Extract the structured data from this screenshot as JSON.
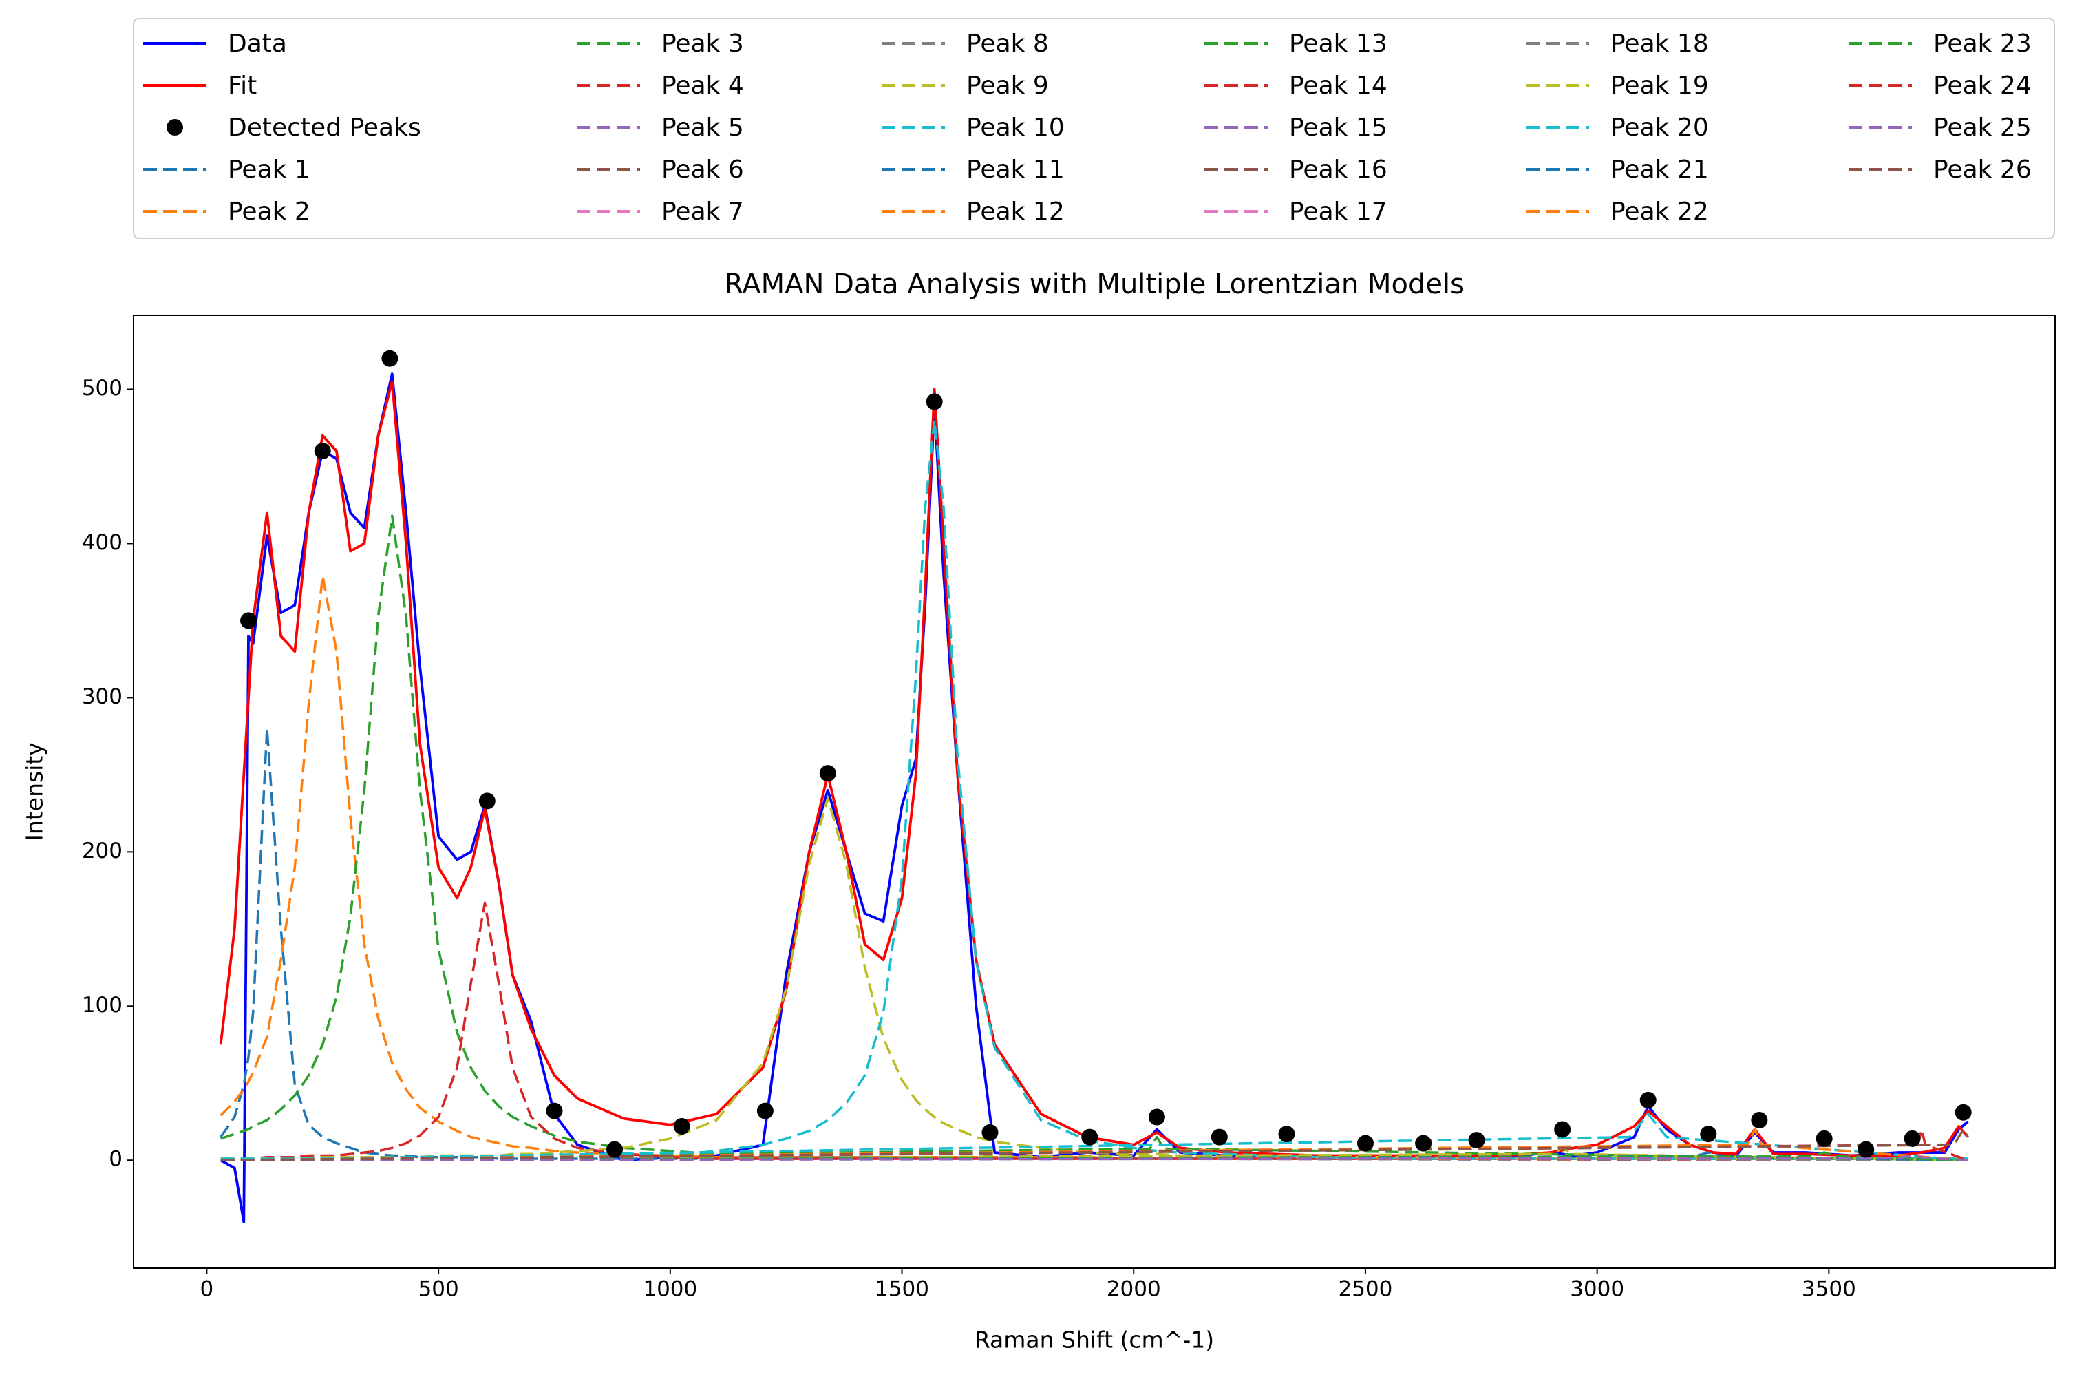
{
  "chart_data": {
    "type": "line",
    "title": "RAMAN Data Analysis with Multiple Lorentzian Models",
    "x_label": "Raman Shift (cm^-1)",
    "y_label": "Intensity",
    "xlim": [
      -158,
      3988
    ],
    "ylim": [
      -70,
      548
    ],
    "xticks": [
      0,
      500,
      1000,
      1500,
      2000,
      2500,
      3000,
      3500
    ],
    "yticks": [
      0,
      100,
      200,
      300,
      400,
      500
    ],
    "grid": false,
    "legend": "above",
    "x": [
      30,
      60,
      80,
      90,
      100,
      130,
      160,
      190,
      220,
      250,
      280,
      310,
      340,
      370,
      400,
      430,
      460,
      500,
      540,
      570,
      600,
      630,
      660,
      700,
      750,
      800,
      900,
      1000,
      1100,
      1200,
      1250,
      1300,
      1340,
      1380,
      1420,
      1460,
      1500,
      1530,
      1550,
      1570,
      1590,
      1620,
      1660,
      1700,
      1800,
      1900,
      2000,
      2050,
      2100,
      2200,
      2400,
      2600,
      2800,
      2900,
      2950,
      3000,
      3080,
      3110,
      3150,
      3200,
      3250,
      3300,
      3340,
      3380,
      3450,
      3550,
      3650,
      3700,
      3750,
      3780,
      3800
    ],
    "series": [
      {
        "name": "Data",
        "color": "#0000ff",
        "style": "solid",
        "values": [
          0,
          -5,
          -40,
          340,
          335,
          405,
          355,
          360,
          420,
          460,
          455,
          420,
          410,
          470,
          510,
          420,
          320,
          210,
          195,
          200,
          230,
          180,
          120,
          90,
          30,
          10,
          0,
          2,
          3,
          10,
          120,
          200,
          240,
          200,
          160,
          155,
          230,
          260,
          360,
          490,
          380,
          250,
          100,
          5,
          2,
          5,
          3,
          20,
          5,
          3,
          2,
          2,
          2,
          5,
          3,
          5,
          15,
          35,
          20,
          10,
          5,
          3,
          18,
          5,
          5,
          3,
          5,
          5,
          5,
          20,
          25
        ]
      },
      {
        "name": "Fit",
        "color": "#ff0000",
        "style": "solid",
        "values": [
          75,
          150,
          250,
          300,
          350,
          420,
          340,
          330,
          420,
          470,
          460,
          395,
          400,
          470,
          505,
          400,
          270,
          190,
          170,
          190,
          228,
          180,
          120,
          85,
          55,
          40,
          27,
          23,
          30,
          60,
          110,
          200,
          250,
          200,
          140,
          130,
          170,
          250,
          370,
          500,
          400,
          250,
          130,
          75,
          30,
          15,
          10,
          18,
          8,
          5,
          3,
          3,
          3,
          5,
          8,
          10,
          22,
          32,
          22,
          10,
          5,
          4,
          20,
          4,
          4,
          3,
          3,
          5,
          8,
          22,
          15
        ]
      },
      {
        "name": "Detected Peaks",
        "color": "#000000",
        "style": "marker",
        "x": [
          90,
          250,
          395,
          605,
          750,
          880,
          1025,
          1205,
          1340,
          1570,
          1690,
          1905,
          2050,
          2185,
          2330,
          2500,
          2625,
          2740,
          2925,
          3110,
          3240,
          3350,
          3490,
          3580,
          3680,
          3790
        ],
        "values": [
          350,
          460,
          520,
          233,
          32,
          7,
          22,
          32,
          251,
          492,
          18,
          15,
          28,
          15,
          17,
          11,
          11,
          13,
          20,
          39,
          17,
          26,
          14,
          7,
          14,
          31
        ]
      },
      {
        "name": "Peak 1",
        "color": "#1f77b4",
        "style": "dashed",
        "values": [
          15,
          28,
          49,
          67,
          96,
          280,
          150,
          49,
          23,
          15,
          11,
          8,
          5,
          4,
          3,
          3,
          2,
          2,
          2,
          2,
          2,
          1,
          1,
          1,
          1,
          1,
          1,
          1,
          1,
          1,
          1,
          1,
          1,
          1,
          1,
          1,
          1,
          1,
          1,
          1,
          1,
          1,
          1,
          1,
          1,
          1,
          1,
          1,
          1,
          1,
          1,
          1,
          1,
          1,
          1,
          1,
          1,
          1,
          1,
          1,
          1,
          1,
          1,
          1,
          1,
          1,
          1,
          1,
          1,
          1,
          1
        ]
      },
      {
        "name": "Peak 2",
        "color": "#ff7f0e",
        "style": "dashed",
        "values": [
          29,
          38,
          46,
          51,
          57,
          80,
          130,
          190,
          296,
          379,
          330,
          222,
          140,
          92,
          63,
          46,
          34,
          25,
          19,
          15,
          13,
          11,
          9,
          8,
          6,
          5,
          4,
          3,
          2,
          2,
          2,
          2,
          2,
          2,
          2,
          2,
          2,
          2,
          2,
          2,
          2,
          2,
          2,
          2,
          2,
          2,
          1,
          1,
          1,
          1,
          1,
          1,
          1,
          1,
          1,
          1,
          1,
          1,
          1,
          1,
          1,
          1,
          1,
          1,
          1,
          1,
          1,
          1,
          1,
          1,
          1
        ]
      },
      {
        "name": "Peak 3",
        "color": "#2ca02c",
        "style": "dashed",
        "values": [
          14,
          17,
          19,
          20,
          22,
          26,
          33,
          42,
          55,
          75,
          106,
          158,
          240,
          353,
          418,
          353,
          240,
          137,
          83,
          60,
          45,
          35,
          28,
          22,
          16,
          12,
          8,
          6,
          4,
          3,
          3,
          3,
          2,
          2,
          2,
          2,
          2,
          2,
          2,
          2,
          2,
          2,
          2,
          2,
          1,
          1,
          1,
          1,
          1,
          1,
          1,
          1,
          1,
          1,
          1,
          1,
          1,
          1,
          1,
          1,
          1,
          1,
          1,
          1,
          1,
          1,
          1,
          1,
          1,
          1,
          1
        ]
      },
      {
        "name": "Peak 4",
        "color": "#d62728",
        "style": "dashed",
        "values": [
          1,
          1,
          1,
          1,
          1,
          2,
          2,
          2,
          3,
          3,
          3,
          4,
          5,
          6,
          8,
          11,
          16,
          28,
          60,
          115,
          167,
          115,
          60,
          28,
          14,
          8,
          4,
          2,
          1,
          1,
          1,
          1,
          1,
          1,
          1,
          1,
          1,
          1,
          1,
          1,
          1,
          1,
          1,
          1,
          1,
          1,
          1,
          1,
          1,
          1,
          1,
          1,
          1,
          1,
          1,
          1,
          1,
          1,
          1,
          1,
          1,
          1,
          1,
          1,
          1,
          1,
          1,
          1,
          1,
          1,
          1
        ]
      },
      {
        "name": "Peak 5",
        "color": "#9467bd",
        "style": "dashed",
        "x": [
          30,
          720,
          750,
          780,
          3800
        ],
        "values": [
          0,
          2.5,
          5,
          2.5,
          0
        ]
      },
      {
        "name": "Peak 6",
        "color": "#8c564b",
        "style": "dashed",
        "x": [
          30,
          850,
          880,
          910,
          3800
        ],
        "values": [
          0,
          1.5,
          3,
          1.5,
          0
        ]
      },
      {
        "name": "Peak 7",
        "color": "#e377c2",
        "style": "dashed",
        "x": [
          30,
          995,
          1025,
          1055,
          3800
        ],
        "values": [
          0,
          1.5,
          3,
          1.5,
          0
        ]
      },
      {
        "name": "Peak 8",
        "color": "#7f7f7f",
        "style": "dashed",
        "x": [
          30,
          1175,
          1205,
          1235,
          3800
        ],
        "values": [
          0,
          1.5,
          3,
          1.5,
          0
        ]
      },
      {
        "name": "Peak 9",
        "color": "#bcbd22",
        "style": "dashed",
        "values": [
          1,
          1,
          1,
          1,
          1,
          1,
          1,
          1,
          1,
          2,
          2,
          2,
          2,
          2,
          2,
          2,
          2,
          3,
          3,
          3,
          3,
          3,
          4,
          4,
          5,
          6,
          8,
          14,
          26,
          63,
          111,
          192,
          235,
          192,
          125,
          79,
          52,
          39,
          33,
          28,
          24,
          20,
          15,
          12,
          8,
          5,
          4,
          4,
          3,
          3,
          2,
          2,
          1,
          1,
          1,
          1,
          1,
          1,
          1,
          1,
          1,
          1,
          1,
          1,
          1,
          1,
          1,
          1,
          1,
          1,
          1
        ]
      },
      {
        "name": "Peak 10",
        "color": "#17becf",
        "style": "dashed",
        "values": [
          1,
          1,
          1,
          1,
          1,
          1,
          1,
          1,
          1,
          1,
          1,
          1,
          1,
          1,
          1,
          1,
          1,
          1,
          1,
          1,
          1,
          1,
          1,
          1,
          1,
          1,
          2,
          3,
          6,
          10,
          14,
          19,
          26,
          37,
          55,
          96,
          183,
          314,
          423,
          480,
          423,
          262,
          129,
          73,
          26,
          13,
          8,
          6,
          5,
          4,
          2,
          1,
          1,
          1,
          1,
          1,
          1,
          1,
          1,
          1,
          1,
          1,
          1,
          1,
          1,
          1,
          1,
          1,
          1,
          1,
          1
        ]
      },
      {
        "name": "Peak 11",
        "color": "#1f77b4",
        "style": "dashed",
        "x": [
          30,
          1660,
          1690,
          1720,
          3800
        ],
        "values": [
          0,
          1.5,
          3,
          1.5,
          0
        ]
      },
      {
        "name": "Peak 12",
        "color": "#ff7f0e",
        "style": "dashed",
        "x": [
          30,
          1875,
          1905,
          1935,
          3800
        ],
        "values": [
          0,
          1.5,
          3,
          1.5,
          0
        ]
      },
      {
        "name": "Peak 13",
        "color": "#2ca02c",
        "style": "dashed",
        "x": [
          30,
          2035,
          2050,
          2065,
          3800
        ],
        "values": [
          0,
          7.5,
          15,
          7.5,
          0
        ]
      },
      {
        "name": "Peak 14",
        "color": "#d62728",
        "style": "dashed",
        "x": [
          30,
          2155,
          2185,
          2215,
          3800
        ],
        "values": [
          0,
          1.5,
          3,
          1.5,
          0
        ]
      },
      {
        "name": "Peak 15",
        "color": "#9467bd",
        "style": "dashed",
        "x": [
          30,
          2300,
          2330,
          2360,
          3800
        ],
        "values": [
          0,
          1.5,
          3,
          1.5,
          0
        ]
      },
      {
        "name": "Peak 16",
        "color": "#8c564b",
        "style": "dashed",
        "x": [
          30,
          2470,
          2500,
          2530,
          3800
        ],
        "values": [
          0,
          1.5,
          3,
          1.5,
          0
        ]
      },
      {
        "name": "Peak 17",
        "color": "#e377c2",
        "style": "dashed",
        "x": [
          30,
          2595,
          2625,
          2655,
          3800
        ],
        "values": [
          0,
          1.5,
          3,
          1.5,
          0
        ]
      },
      {
        "name": "Peak 18",
        "color": "#7f7f7f",
        "style": "dashed",
        "x": [
          30,
          2710,
          2740,
          2770,
          3800
        ],
        "values": [
          0,
          1.5,
          3,
          1.5,
          0
        ]
      },
      {
        "name": "Peak 19",
        "color": "#bcbd22",
        "style": "dashed",
        "x": [
          30,
          2905,
          2925,
          2945,
          3800
        ],
        "values": [
          0,
          4,
          8,
          4,
          0
        ]
      },
      {
        "name": "Peak 20",
        "color": "#17becf",
        "style": "dashed",
        "x": [
          30,
          3070,
          3110,
          3150,
          3800
        ],
        "values": [
          0,
          15,
          30,
          15,
          0
        ]
      },
      {
        "name": "Peak 21",
        "color": "#1f77b4",
        "style": "dashed",
        "x": [
          30,
          3210,
          3240,
          3270,
          3800
        ],
        "values": [
          0,
          2.5,
          5,
          2.5,
          0
        ]
      },
      {
        "name": "Peak 22",
        "color": "#ff7f0e",
        "style": "dashed",
        "x": [
          30,
          3325,
          3340,
          3355,
          3800
        ],
        "values": [
          0,
          10,
          20,
          10,
          0
        ]
      },
      {
        "name": "Peak 23",
        "color": "#2ca02c",
        "style": "dashed",
        "x": [
          30,
          3460,
          3490,
          3520,
          3800
        ],
        "values": [
          0,
          2.5,
          5,
          2.5,
          0
        ]
      },
      {
        "name": "Peak 24",
        "color": "#d62728",
        "style": "dashed",
        "x": [
          30,
          3692,
          3700,
          3708,
          3800
        ],
        "values": [
          0,
          10,
          20,
          10,
          0
        ]
      },
      {
        "name": "Peak 25",
        "color": "#9467bd",
        "style": "dashed",
        "x": [
          30,
          3650,
          3680,
          3710,
          3800
        ],
        "values": [
          0,
          1.5,
          3,
          1.5,
          0
        ]
      },
      {
        "name": "Peak 26",
        "color": "#8c564b",
        "style": "dashed",
        "x": [
          30,
          3770,
          3790,
          3800
        ],
        "values": [
          0,
          10,
          20,
          15
        ]
      }
    ]
  }
}
